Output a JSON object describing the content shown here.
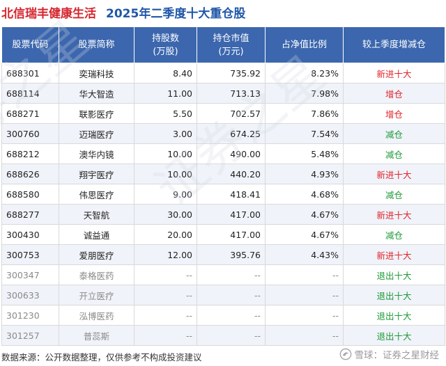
{
  "title": {
    "fund_name": "北信瑞丰健康生活",
    "subtitle": "2025年二季度十大重仓股"
  },
  "table": {
    "headers": [
      [
        "股票代码"
      ],
      [
        "股票简称"
      ],
      [
        "持股数",
        "(万股)"
      ],
      [
        "持仓市值",
        "(万元)"
      ],
      [
        "占净值比例"
      ],
      [
        "较上季度增减仓"
      ]
    ],
    "rows": [
      {
        "code": "688301",
        "name": "奕瑞科技",
        "shares": "8.40",
        "value": "735.92",
        "ratio": "8.23%",
        "change": "新进十大",
        "change_color": "red",
        "faded": false
      },
      {
        "code": "688114",
        "name": "华大智造",
        "shares": "11.00",
        "value": "713.13",
        "ratio": "7.98%",
        "change": "增仓",
        "change_color": "red",
        "faded": false
      },
      {
        "code": "688271",
        "name": "联影医疗",
        "shares": "5.50",
        "value": "702.57",
        "ratio": "7.86%",
        "change": "增仓",
        "change_color": "red",
        "faded": false
      },
      {
        "code": "300760",
        "name": "迈瑞医疗",
        "shares": "3.00",
        "value": "674.25",
        "ratio": "7.54%",
        "change": "减仓",
        "change_color": "green",
        "faded": false
      },
      {
        "code": "688212",
        "name": "澳华内镜",
        "shares": "10.00",
        "value": "490.00",
        "ratio": "5.48%",
        "change": "减仓",
        "change_color": "green",
        "faded": false
      },
      {
        "code": "688626",
        "name": "翔宇医疗",
        "shares": "10.00",
        "value": "440.20",
        "ratio": "4.93%",
        "change": "新进十大",
        "change_color": "red",
        "faded": false
      },
      {
        "code": "688580",
        "name": "伟思医疗",
        "shares": "9.00",
        "value": "418.41",
        "ratio": "4.68%",
        "change": "减仓",
        "change_color": "green",
        "faded": false
      },
      {
        "code": "688277",
        "name": "天智航",
        "shares": "30.00",
        "value": "417.00",
        "ratio": "4.67%",
        "change": "新进十大",
        "change_color": "red",
        "faded": false
      },
      {
        "code": "300430",
        "name": "诚益通",
        "shares": "20.00",
        "value": "417.00",
        "ratio": "4.67%",
        "change": "减仓",
        "change_color": "green",
        "faded": false
      },
      {
        "code": "300753",
        "name": "爱朋医疗",
        "shares": "12.00",
        "value": "395.76",
        "ratio": "4.43%",
        "change": "新进十大",
        "change_color": "red",
        "faded": false
      },
      {
        "code": "300347",
        "name": "泰格医药",
        "shares": "--",
        "value": "--",
        "ratio": "--",
        "change": "退出十大",
        "change_color": "green",
        "faded": true
      },
      {
        "code": "300633",
        "name": "开立医疗",
        "shares": "--",
        "value": "--",
        "ratio": "--",
        "change": "退出十大",
        "change_color": "green",
        "faded": true
      },
      {
        "code": "301230",
        "name": "泓博医药",
        "shares": "--",
        "value": "--",
        "ratio": "--",
        "change": "退出十大",
        "change_color": "green",
        "faded": true
      },
      {
        "code": "301257",
        "name": "普蕊斯",
        "shares": "--",
        "value": "--",
        "ratio": "--",
        "change": "退出十大",
        "change_color": "green",
        "faded": true
      }
    ]
  },
  "footer": {
    "source": "数据来源：公开数据整理，仅供参考不构成投资建议",
    "brand": "雪球：证券之星财经",
    "brand_icon": "snowball-icon"
  },
  "watermark": {
    "text": "证券之星"
  },
  "colors": {
    "fund_name": "#d4262e",
    "subtitle": "#1f56a8",
    "header_bg": "#3c67ae",
    "increase": "#e0252b",
    "decrease": "#1e9a39",
    "faded_text": "#8a8a8a"
  }
}
